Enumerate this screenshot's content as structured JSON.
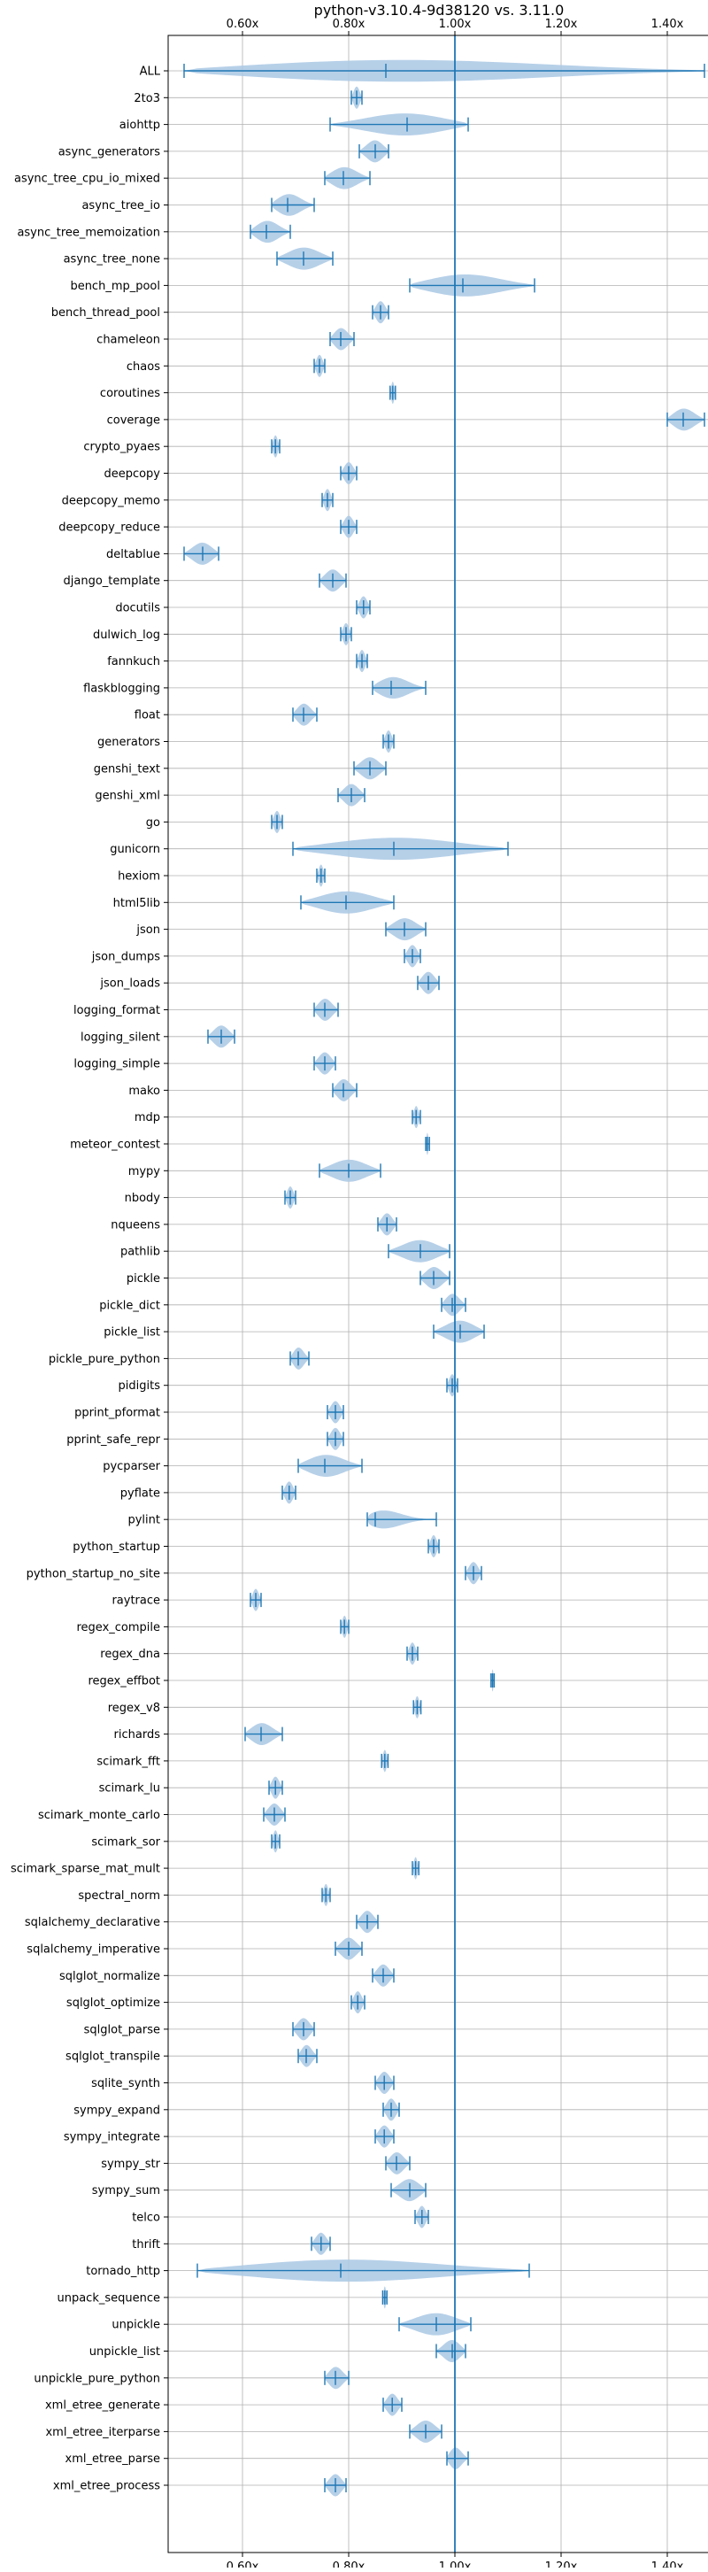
{
  "chart_data": {
    "type": "violin",
    "title": "python-v3.10.4-9d38120 vs. 3.11.0",
    "xlabel": "",
    "ylabel": "",
    "xlim": [
      0.46,
      1.48
    ],
    "x_ticks": [
      0.6,
      0.8,
      1.0,
      1.2,
      1.4
    ],
    "x_tick_labels": [
      "0.60x",
      "0.80x",
      "1.00x",
      "1.20x",
      "1.40x"
    ],
    "reference_line": 1.0,
    "grid": true,
    "colors": {
      "body": "#a9c8e4",
      "line": "#1f77b4",
      "grid": "#b0b0b0"
    },
    "categories": [
      "ALL",
      "2to3",
      "aiohttp",
      "async_generators",
      "async_tree_cpu_io_mixed",
      "async_tree_io",
      "async_tree_memoization",
      "async_tree_none",
      "bench_mp_pool",
      "bench_thread_pool",
      "chameleon",
      "chaos",
      "coroutines",
      "coverage",
      "crypto_pyaes",
      "deepcopy",
      "deepcopy_memo",
      "deepcopy_reduce",
      "deltablue",
      "django_template",
      "docutils",
      "dulwich_log",
      "fannkuch",
      "flaskblogging",
      "float",
      "generators",
      "genshi_text",
      "genshi_xml",
      "go",
      "gunicorn",
      "hexiom",
      "html5lib",
      "json",
      "json_dumps",
      "json_loads",
      "logging_format",
      "logging_silent",
      "logging_simple",
      "mako",
      "mdp",
      "meteor_contest",
      "mypy",
      "nbody",
      "nqueens",
      "pathlib",
      "pickle",
      "pickle_dict",
      "pickle_list",
      "pickle_pure_python",
      "pidigits",
      "pprint_pformat",
      "pprint_safe_repr",
      "pycparser",
      "pyflate",
      "pylint",
      "python_startup",
      "python_startup_no_site",
      "raytrace",
      "regex_compile",
      "regex_dna",
      "regex_effbot",
      "regex_v8",
      "richards",
      "scimark_fft",
      "scimark_lu",
      "scimark_monte_carlo",
      "scimark_sor",
      "scimark_sparse_mat_mult",
      "spectral_norm",
      "sqlalchemy_declarative",
      "sqlalchemy_imperative",
      "sqlglot_normalize",
      "sqlglot_optimize",
      "sqlglot_parse",
      "sqlglot_transpile",
      "sqlite_synth",
      "sympy_expand",
      "sympy_integrate",
      "sympy_str",
      "sympy_sum",
      "telco",
      "thrift",
      "tornado_http",
      "unpack_sequence",
      "unpickle",
      "unpickle_list",
      "unpickle_pure_python",
      "xml_etree_generate",
      "xml_etree_iterparse",
      "xml_etree_parse",
      "xml_etree_process"
    ],
    "series": [
      {
        "min": 0.49,
        "max": 1.47,
        "median": 0.87
      },
      {
        "min": 0.805,
        "max": 0.825,
        "median": 0.815
      },
      {
        "min": 0.765,
        "max": 1.025,
        "median": 0.91
      },
      {
        "min": 0.82,
        "max": 0.875,
        "median": 0.85
      },
      {
        "min": 0.755,
        "max": 0.84,
        "median": 0.79
      },
      {
        "min": 0.655,
        "max": 0.735,
        "median": 0.685
      },
      {
        "min": 0.615,
        "max": 0.69,
        "median": 0.645
      },
      {
        "min": 0.665,
        "max": 0.77,
        "median": 0.715
      },
      {
        "min": 0.915,
        "max": 1.15,
        "median": 1.015
      },
      {
        "min": 0.845,
        "max": 0.875,
        "median": 0.86
      },
      {
        "min": 0.765,
        "max": 0.81,
        "median": 0.785
      },
      {
        "min": 0.735,
        "max": 0.755,
        "median": 0.745
      },
      {
        "min": 0.878,
        "max": 0.888,
        "median": 0.883
      },
      {
        "min": 1.4,
        "max": 1.47,
        "median": 1.43
      },
      {
        "min": 0.655,
        "max": 0.67,
        "median": 0.662
      },
      {
        "min": 0.785,
        "max": 0.815,
        "median": 0.8
      },
      {
        "min": 0.75,
        "max": 0.77,
        "median": 0.76
      },
      {
        "min": 0.785,
        "max": 0.815,
        "median": 0.8
      },
      {
        "min": 0.49,
        "max": 0.555,
        "median": 0.525
      },
      {
        "min": 0.745,
        "max": 0.795,
        "median": 0.77
      },
      {
        "min": 0.815,
        "max": 0.84,
        "median": 0.828
      },
      {
        "min": 0.785,
        "max": 0.805,
        "median": 0.795
      },
      {
        "min": 0.815,
        "max": 0.835,
        "median": 0.825
      },
      {
        "min": 0.845,
        "max": 0.945,
        "median": 0.88
      },
      {
        "min": 0.695,
        "max": 0.74,
        "median": 0.715
      },
      {
        "min": 0.865,
        "max": 0.885,
        "median": 0.875
      },
      {
        "min": 0.81,
        "max": 0.87,
        "median": 0.84
      },
      {
        "min": 0.78,
        "max": 0.83,
        "median": 0.805
      },
      {
        "min": 0.655,
        "max": 0.675,
        "median": 0.665
      },
      {
        "min": 0.695,
        "max": 1.1,
        "median": 0.885
      },
      {
        "min": 0.74,
        "max": 0.755,
        "median": 0.748
      },
      {
        "min": 0.71,
        "max": 0.885,
        "median": 0.795
      },
      {
        "min": 0.87,
        "max": 0.945,
        "median": 0.905
      },
      {
        "min": 0.905,
        "max": 0.935,
        "median": 0.92
      },
      {
        "min": 0.93,
        "max": 0.97,
        "median": 0.95
      },
      {
        "min": 0.735,
        "max": 0.78,
        "median": 0.755
      },
      {
        "min": 0.535,
        "max": 0.585,
        "median": 0.56
      },
      {
        "min": 0.735,
        "max": 0.775,
        "median": 0.755
      },
      {
        "min": 0.77,
        "max": 0.815,
        "median": 0.79
      },
      {
        "min": 0.92,
        "max": 0.935,
        "median": 0.927
      },
      {
        "min": 0.945,
        "max": 0.952,
        "median": 0.948
      },
      {
        "min": 0.745,
        "max": 0.86,
        "median": 0.8
      },
      {
        "min": 0.68,
        "max": 0.7,
        "median": 0.69
      },
      {
        "min": 0.855,
        "max": 0.89,
        "median": 0.872
      },
      {
        "min": 0.875,
        "max": 0.99,
        "median": 0.935
      },
      {
        "min": 0.935,
        "max": 0.99,
        "median": 0.96
      },
      {
        "min": 0.975,
        "max": 1.02,
        "median": 0.995
      },
      {
        "min": 0.96,
        "max": 1.055,
        "median": 1.01
      },
      {
        "min": 0.69,
        "max": 0.725,
        "median": 0.705
      },
      {
        "min": 0.985,
        "max": 1.005,
        "median": 0.995
      },
      {
        "min": 0.76,
        "max": 0.79,
        "median": 0.775
      },
      {
        "min": 0.76,
        "max": 0.79,
        "median": 0.775
      },
      {
        "min": 0.705,
        "max": 0.825,
        "median": 0.755
      },
      {
        "min": 0.675,
        "max": 0.7,
        "median": 0.688
      },
      {
        "min": 0.835,
        "max": 0.965,
        "median": 0.85
      },
      {
        "min": 0.95,
        "max": 0.97,
        "median": 0.96
      },
      {
        "min": 1.02,
        "max": 1.05,
        "median": 1.035
      },
      {
        "min": 0.615,
        "max": 0.635,
        "median": 0.625
      },
      {
        "min": 0.785,
        "max": 0.8,
        "median": 0.792
      },
      {
        "min": 0.91,
        "max": 0.93,
        "median": 0.92
      },
      {
        "min": 1.068,
        "max": 1.074,
        "median": 1.071
      },
      {
        "min": 0.922,
        "max": 0.936,
        "median": 0.929
      },
      {
        "min": 0.605,
        "max": 0.675,
        "median": 0.635
      },
      {
        "min": 0.862,
        "max": 0.874,
        "median": 0.868
      },
      {
        "min": 0.65,
        "max": 0.675,
        "median": 0.662
      },
      {
        "min": 0.64,
        "max": 0.68,
        "median": 0.66
      },
      {
        "min": 0.655,
        "max": 0.67,
        "median": 0.662
      },
      {
        "min": 0.92,
        "max": 0.932,
        "median": 0.926
      },
      {
        "min": 0.75,
        "max": 0.765,
        "median": 0.757
      },
      {
        "min": 0.815,
        "max": 0.855,
        "median": 0.835
      },
      {
        "min": 0.775,
        "max": 0.825,
        "median": 0.8
      },
      {
        "min": 0.845,
        "max": 0.885,
        "median": 0.865
      },
      {
        "min": 0.805,
        "max": 0.83,
        "median": 0.817
      },
      {
        "min": 0.695,
        "max": 0.735,
        "median": 0.715
      },
      {
        "min": 0.705,
        "max": 0.74,
        "median": 0.72
      },
      {
        "min": 0.85,
        "max": 0.885,
        "median": 0.867
      },
      {
        "min": 0.865,
        "max": 0.895,
        "median": 0.88
      },
      {
        "min": 0.85,
        "max": 0.885,
        "median": 0.867
      },
      {
        "min": 0.87,
        "max": 0.915,
        "median": 0.89
      },
      {
        "min": 0.88,
        "max": 0.945,
        "median": 0.915
      },
      {
        "min": 0.925,
        "max": 0.95,
        "median": 0.938
      },
      {
        "min": 0.73,
        "max": 0.765,
        "median": 0.748
      },
      {
        "min": 0.515,
        "max": 1.14,
        "median": 0.785
      },
      {
        "min": 0.864,
        "max": 0.872,
        "median": 0.868
      },
      {
        "min": 0.895,
        "max": 1.03,
        "median": 0.965
      },
      {
        "min": 0.965,
        "max": 1.02,
        "median": 0.995
      },
      {
        "min": 0.755,
        "max": 0.8,
        "median": 0.775
      },
      {
        "min": 0.865,
        "max": 0.9,
        "median": 0.882
      },
      {
        "min": 0.915,
        "max": 0.975,
        "median": 0.945
      },
      {
        "min": 0.985,
        "max": 1.025,
        "median": 1.0
      },
      {
        "min": 0.755,
        "max": 0.795,
        "median": 0.775
      }
    ]
  }
}
